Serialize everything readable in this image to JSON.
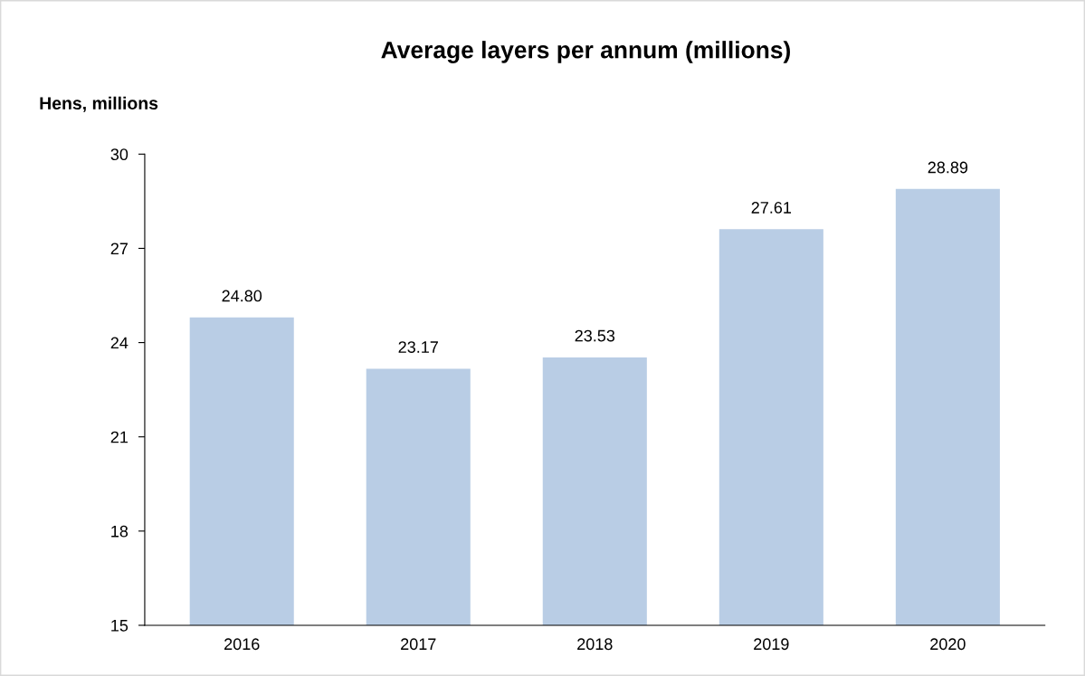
{
  "chart_data": {
    "type": "bar",
    "title": "Average layers per annum (millions)",
    "ylabel": "Hens, millions",
    "categories": [
      "2016",
      "2017",
      "2018",
      "2019",
      "2020"
    ],
    "values": [
      24.8,
      23.17,
      23.53,
      27.61,
      28.89
    ],
    "value_labels": [
      "24.80",
      "23.17",
      "23.53",
      "27.61",
      "28.89"
    ],
    "color": "#b9cde5",
    "ylim": [
      15,
      30
    ],
    "yticks": [
      15,
      18,
      21,
      24,
      27,
      30
    ],
    "grid": false,
    "legend": false
  }
}
